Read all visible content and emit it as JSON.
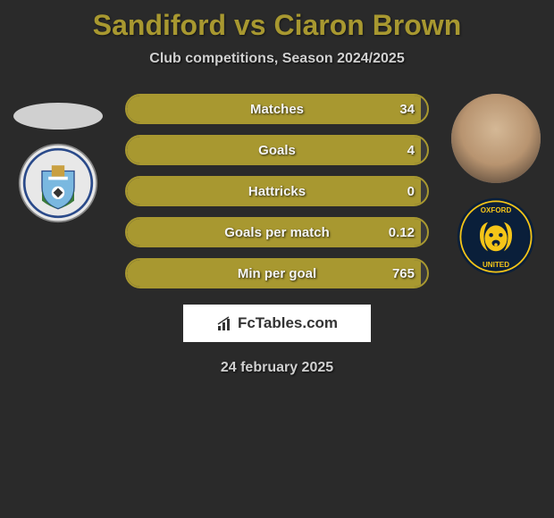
{
  "title": "Sandiford vs Ciaron Brown",
  "title_color": "#a89830",
  "subtitle": "Club competitions, Season 2024/2025",
  "background_color": "#2a2a2a",
  "bar_fill_color": "#a89830",
  "bar_border_color": "#a89830",
  "bar_bg_color": "#3a3a3a",
  "stats": [
    {
      "label": "Matches",
      "value": "34",
      "fill_pct": 98
    },
    {
      "label": "Goals",
      "value": "4",
      "fill_pct": 98
    },
    {
      "label": "Hattricks",
      "value": "0",
      "fill_pct": 98
    },
    {
      "label": "Goals per match",
      "value": "0.12",
      "fill_pct": 98
    },
    {
      "label": "Min per goal",
      "value": "765",
      "fill_pct": 98
    }
  ],
  "brand_text": "FcTables.com",
  "date_text": "24 february 2025",
  "left_club": {
    "name": "Coventry City",
    "bg": "#e8e8e8",
    "accent1": "#7ab8e0",
    "accent2": "#2a4a8a"
  },
  "right_club": {
    "name": "Oxford United",
    "bg": "#0a1f3a",
    "accent1": "#f5c518",
    "accent2": "#f5c518"
  },
  "right_player_name": "Ciaron Brown"
}
